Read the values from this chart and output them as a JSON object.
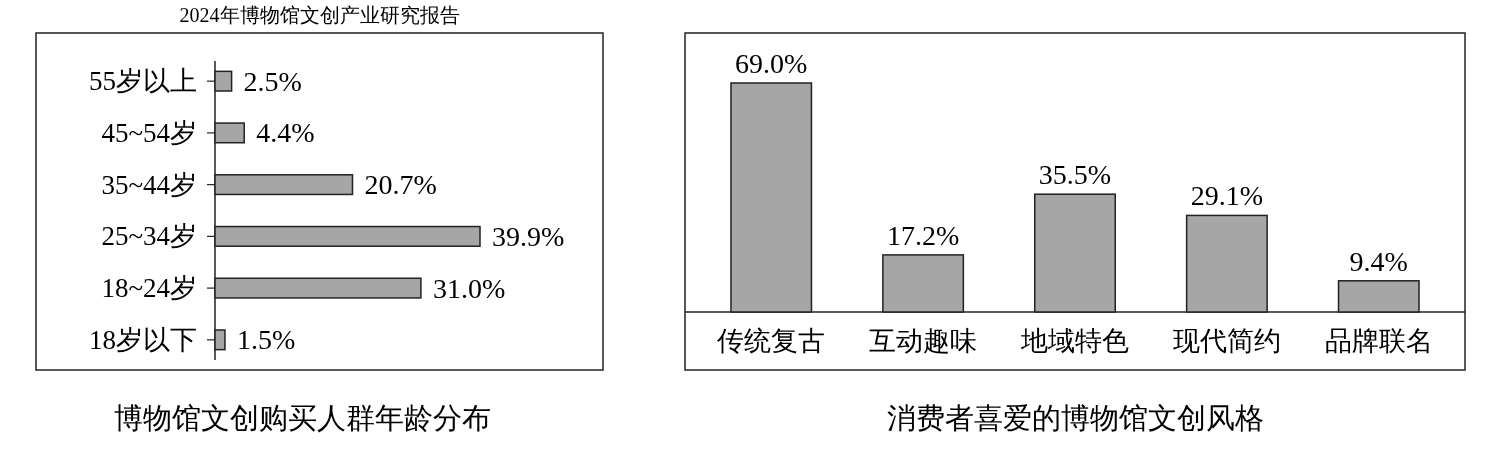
{
  "chart_data": [
    {
      "type": "bar",
      "orientation": "horizontal",
      "title": "博物馆文创购买人群年龄分布",
      "annotations": [
        "2024年博物馆文创产业研究报告"
      ],
      "categories": [
        "55岁以上",
        "45~54岁",
        "35~44岁",
        "25~34岁",
        "18~24岁",
        "18岁以下"
      ],
      "values": [
        2.5,
        4.4,
        20.7,
        39.9,
        31.0,
        1.5
      ],
      "value_labels": [
        "2.5%",
        "4.4%",
        "20.7%",
        "39.9%",
        "31.0%",
        "1.5%"
      ],
      "color": "#a6a6a6"
    },
    {
      "type": "bar",
      "title": "消费者喜爱的博物馆文创风格",
      "categories": [
        "传统复古",
        "互动趣味",
        "地域特色",
        "现代简约",
        "品牌联名"
      ],
      "values": [
        69.0,
        17.2,
        35.5,
        29.1,
        9.4
      ],
      "value_labels": [
        "69.0%",
        "17.2%",
        "35.5%",
        "29.1%",
        "9.4%"
      ],
      "color": "#a6a6a6"
    }
  ]
}
